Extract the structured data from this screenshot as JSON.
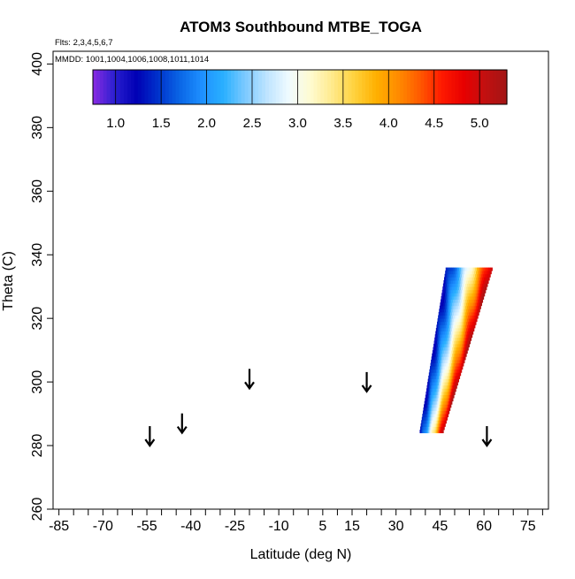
{
  "chart_data": {
    "type": "heatmap",
    "title": "ATOM3 Southbound MTBE_TOGA",
    "flights_label": "Flts: 2,3,4,5,6,7",
    "mmdd_label": "MMDD: 1001,1004,1006,1008,1011,1014",
    "xlabel": "Latitude (deg N)",
    "ylabel": "Theta (C)",
    "xlim": [
      -87,
      82
    ],
    "ylim": [
      260,
      404
    ],
    "x_tick_labels": [
      "-85",
      "-70",
      "-55",
      "-40",
      "-25",
      "-10",
      "5",
      "15",
      "30",
      "45",
      "60",
      "75"
    ],
    "x_tick_values": [
      -85,
      -70,
      -55,
      -40,
      -25,
      -10,
      5,
      15,
      30,
      45,
      60,
      75
    ],
    "x_minor_ticks": [
      -80,
      -75,
      -65,
      -60,
      -50,
      -45,
      -35,
      -30,
      -20,
      -15,
      -5,
      0,
      10,
      20,
      25,
      35,
      40,
      50,
      55,
      65,
      70,
      80
    ],
    "y_tick_labels": [
      "260",
      "280",
      "300",
      "320",
      "340",
      "360",
      "380",
      "400"
    ],
    "y_tick_values": [
      260,
      280,
      300,
      320,
      340,
      360,
      380,
      400
    ],
    "colorbar": {
      "range": [
        0.75,
        5.3
      ],
      "tick_labels": [
        "1.0",
        "1.5",
        "2.0",
        "2.5",
        "3.0",
        "3.5",
        "4.0",
        "4.5",
        "5.0"
      ],
      "tick_values": [
        1.0,
        1.5,
        2.0,
        2.5,
        3.0,
        3.5,
        4.0,
        4.5,
        5.0
      ],
      "colors": [
        "#8a2be2",
        "#2a1fd0",
        "#0000b4",
        "#0033cc",
        "#0a66e6",
        "#1e90ff",
        "#2ab0ff",
        "#7dcaff",
        "#bfe4ff",
        "#f0fbff",
        "#fffbd0",
        "#ffe98a",
        "#ffd23d",
        "#ffb000",
        "#ff8c00",
        "#ff5a00",
        "#ff1a00",
        "#e80000",
        "#c21010",
        "#a31515"
      ]
    },
    "arrows": [
      {
        "lat": -54,
        "theta": 280
      },
      {
        "lat": -43,
        "theta": 284
      },
      {
        "lat": -20,
        "theta": 298
      },
      {
        "lat": 20,
        "theta": 297
      },
      {
        "lat": 61,
        "theta": 280
      }
    ],
    "heatmap_region": {
      "theta_min": 284,
      "theta_max": 336,
      "lat_left_bottom": 38,
      "lat_right_bottom": 46,
      "lat_left_top": 47,
      "lat_right_top": 63,
      "value_left": 1.2,
      "value_right": 5.2
    }
  }
}
